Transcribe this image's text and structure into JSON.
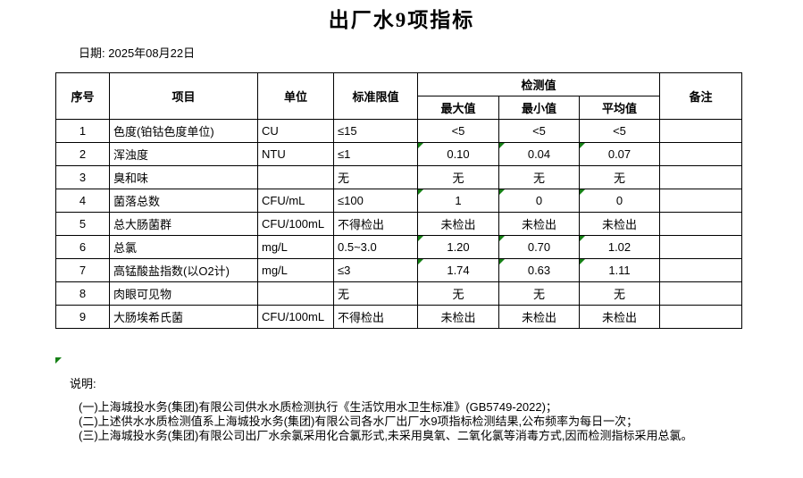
{
  "page": {
    "title": "出厂水9项指标",
    "date_label": "日期:",
    "date_value": "2025年08月22日"
  },
  "colors": {
    "border": "#000000",
    "flag_green": "#158015"
  },
  "table": {
    "headers": {
      "index": "序号",
      "item": "项目",
      "unit": "单位",
      "limit": "标准限值",
      "detection": "检测值",
      "max": "最大值",
      "min": "最小值",
      "avg": "平均值",
      "remark": "备注"
    },
    "rows": [
      {
        "index": "1",
        "item": "色度(铂钴色度单位)",
        "unit": "CU",
        "limit": "≤15",
        "max": "<5",
        "min": "<5",
        "avg": "<5",
        "remark": "",
        "flagged": false
      },
      {
        "index": "2",
        "item": "浑浊度",
        "unit": "NTU",
        "limit": "≤1",
        "max": "0.10",
        "min": "0.04",
        "avg": "0.07",
        "remark": "",
        "flagged": true
      },
      {
        "index": "3",
        "item": "臭和味",
        "unit": "",
        "limit": "无",
        "max": "无",
        "min": "无",
        "avg": "无",
        "remark": "",
        "flagged": false
      },
      {
        "index": "4",
        "item": "菌落总数",
        "unit": "CFU/mL",
        "limit": "≤100",
        "max": "1",
        "min": "0",
        "avg": "0",
        "remark": "",
        "flagged": true
      },
      {
        "index": "5",
        "item": "总大肠菌群",
        "unit": "CFU/100mL",
        "limit": "不得检出",
        "max": "未检出",
        "min": "未检出",
        "avg": "未检出",
        "remark": "",
        "flagged": false
      },
      {
        "index": "6",
        "item": "总氯",
        "unit": "mg/L",
        "limit": "0.5~3.0",
        "max": "1.20",
        "min": "0.70",
        "avg": "1.02",
        "remark": "",
        "flagged": true
      },
      {
        "index": "7",
        "item": "高锰酸盐指数(以O2计)",
        "unit": "mg/L",
        "limit": "≤3",
        "max": "1.74",
        "min": "0.63",
        "avg": "1.11",
        "remark": "",
        "flagged": true
      },
      {
        "index": "8",
        "item": "肉眼可见物",
        "unit": "",
        "limit": "无",
        "max": "无",
        "min": "无",
        "avg": "无",
        "remark": "",
        "flagged": false
      },
      {
        "index": "9",
        "item": "大肠埃希氏菌",
        "unit": "CFU/100mL",
        "limit": "不得检出",
        "max": "未检出",
        "min": "未检出",
        "avg": "未检出",
        "remark": "",
        "flagged": false
      }
    ]
  },
  "notes": {
    "label": "说明:",
    "items": [
      "(一)上海城投水务(集团)有限公司供水水质检测执行《生活饮用水卫生标准》(GB5749-2022)；",
      "(二)上述供水水质检测值系上海城投水务(集团)有限公司各水厂出厂水9项指标检测结果,公布频率为每日一次；",
      "(三)上海城投水务(集团)有限公司出厂水余氯采用化合氯形式,未采用臭氧、二氧化氯等消毒方式,因而检测指标采用总氯。"
    ]
  }
}
